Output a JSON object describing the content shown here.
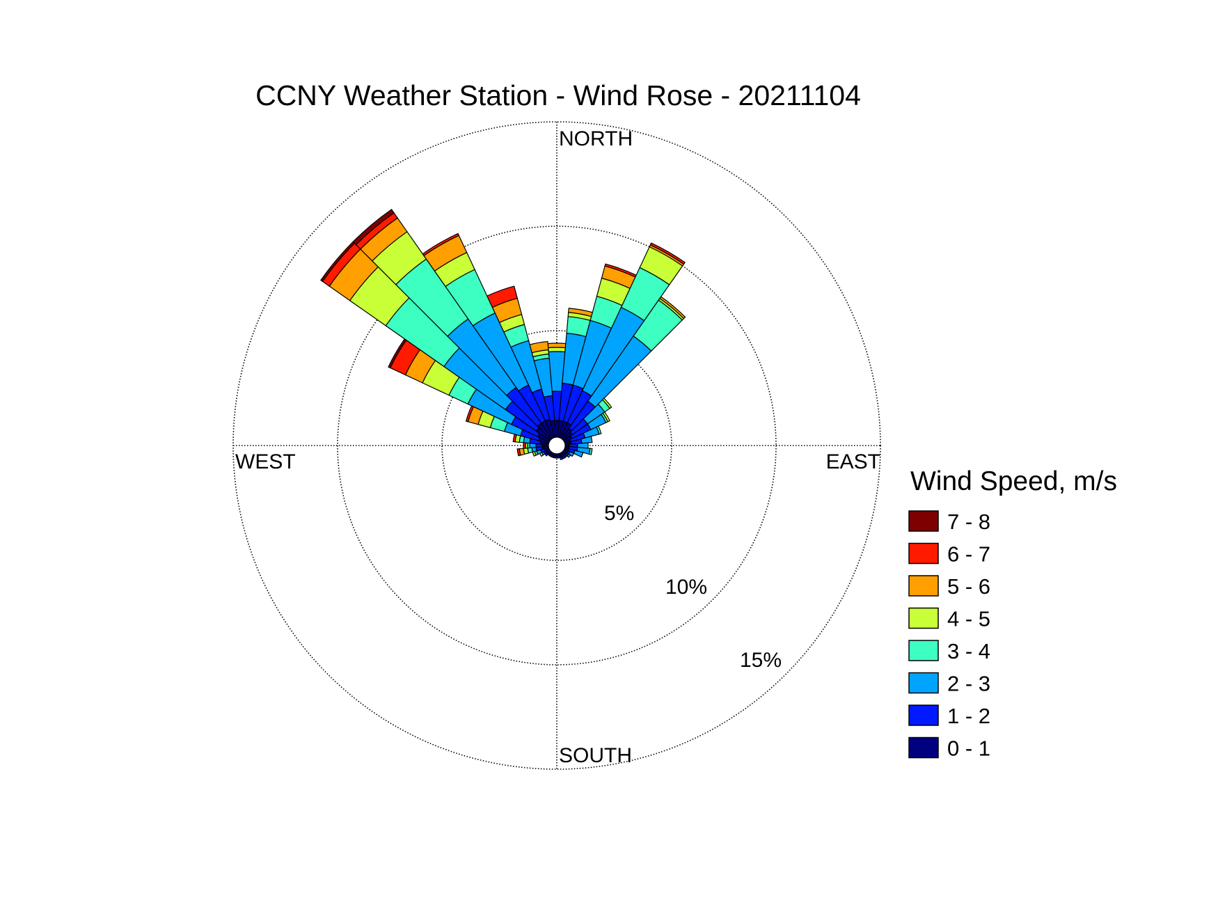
{
  "chart_data": {
    "type": "windrose",
    "title": "CCNY Weather Station - Wind Rose - 20211104",
    "directions": {
      "north": "NORTH",
      "south": "SOUTH",
      "east": "EAST",
      "west": "WEST"
    },
    "rings": [
      {
        "value": 5,
        "label": "5%"
      },
      {
        "value": 10,
        "label": "10%"
      },
      {
        "value": 15,
        "label": "15%"
      }
    ],
    "legend": {
      "title": "Wind Speed, m/s",
      "position": "right",
      "bins": [
        {
          "label": "7 - 8",
          "color": "#7f0000"
        },
        {
          "label": "6 - 7",
          "color": "#ff1a00"
        },
        {
          "label": "5 - 6",
          "color": "#ff9f00"
        },
        {
          "label": "4 - 5",
          "color": "#c8ff36"
        },
        {
          "label": "3 - 4",
          "color": "#3dffc2"
        },
        {
          "label": "2 - 3",
          "color": "#00a4ff"
        },
        {
          "label": "1 - 2",
          "color": "#0019ff"
        },
        {
          "label": "0 - 1",
          "color": "#000080"
        }
      ]
    },
    "speed_bins": [
      "0 - 1",
      "1 - 2",
      "2 - 3",
      "3 - 4",
      "4 - 5",
      "5 - 6",
      "6 - 7",
      "7 - 8"
    ],
    "sector_width_deg": 10,
    "sectors": [
      {
        "direction_deg": 0,
        "cumulative": [
          0.8,
          2.2,
          4.1,
          4.1,
          4.3,
          4.5,
          4.5,
          4.5
        ]
      },
      {
        "direction_deg": 10,
        "cumulative": [
          0.8,
          2.6,
          5.0,
          5.8,
          6.0,
          6.2,
          6.2,
          6.2
        ]
      },
      {
        "direction_deg": 20,
        "cumulative": [
          0.8,
          2.6,
          5.8,
          7.0,
          7.9,
          8.5,
          8.6,
          8.6
        ]
      },
      {
        "direction_deg": 30,
        "cumulative": [
          0.8,
          2.5,
          6.9,
          9.0,
          10.1,
          10.2,
          10.3,
          10.3
        ]
      },
      {
        "direction_deg": 40,
        "cumulative": [
          0.6,
          2.2,
          6.0,
          8.1,
          8.2,
          8.3,
          8.3,
          8.3
        ]
      },
      {
        "direction_deg": 50,
        "cumulative": [
          0.5,
          1.4,
          2.4,
          2.7,
          2.8,
          2.8,
          2.8,
          2.8
        ]
      },
      {
        "direction_deg": 60,
        "cumulative": [
          0.4,
          1.4,
          2.2,
          2.3,
          2.4,
          2.4,
          2.4,
          2.4
        ]
      },
      {
        "direction_deg": 70,
        "cumulative": [
          0.3,
          1.0,
          1.7,
          1.8,
          1.8,
          1.8,
          1.8,
          1.8
        ]
      },
      {
        "direction_deg": 80,
        "cumulative": [
          0.3,
          0.8,
          1.3,
          1.3,
          1.3,
          1.3,
          1.3,
          1.3
        ]
      },
      {
        "direction_deg": 90,
        "cumulative": [
          0.2,
          0.6,
          1.1,
          1.1,
          1.1,
          1.1,
          1.1,
          1.1
        ]
      },
      {
        "direction_deg": 100,
        "cumulative": [
          0.2,
          0.6,
          1.2,
          1.3,
          1.3,
          1.3,
          1.3,
          1.3
        ]
      },
      {
        "direction_deg": 110,
        "cumulative": [
          0.2,
          0.5,
          0.9,
          0.9,
          0.9,
          0.9,
          0.9,
          0.9
        ]
      },
      {
        "direction_deg": 120,
        "cumulative": [
          0.2,
          0.3,
          0.5,
          0.5,
          0.5,
          0.5,
          0.5,
          0.5
        ]
      },
      {
        "direction_deg": 130,
        "cumulative": [
          0.2,
          0.3,
          0.4,
          0.4,
          0.4,
          0.4,
          0.4,
          0.4
        ]
      },
      {
        "direction_deg": 140,
        "cumulative": [
          0.2,
          0.3,
          0.3,
          0.3,
          0.3,
          0.3,
          0.3,
          0.3
        ]
      },
      {
        "direction_deg": 150,
        "cumulative": [
          0.2,
          0.3,
          0.3,
          0.3,
          0.3,
          0.3,
          0.3,
          0.3
        ]
      },
      {
        "direction_deg": 160,
        "cumulative": [
          0.2,
          0.3,
          0.3,
          0.3,
          0.3,
          0.3,
          0.3,
          0.3
        ]
      },
      {
        "direction_deg": 170,
        "cumulative": [
          0.2,
          0.2,
          0.2,
          0.2,
          0.2,
          0.2,
          0.2,
          0.2
        ]
      },
      {
        "direction_deg": 180,
        "cumulative": [
          0.2,
          0.2,
          0.2,
          0.2,
          0.2,
          0.2,
          0.2,
          0.2
        ]
      },
      {
        "direction_deg": 190,
        "cumulative": [
          0.2,
          0.2,
          0.2,
          0.2,
          0.2,
          0.2,
          0.2,
          0.2
        ]
      },
      {
        "direction_deg": 200,
        "cumulative": [
          0.2,
          0.2,
          0.2,
          0.2,
          0.2,
          0.2,
          0.2,
          0.2
        ]
      },
      {
        "direction_deg": 210,
        "cumulative": [
          0.2,
          0.2,
          0.2,
          0.2,
          0.2,
          0.2,
          0.2,
          0.2
        ]
      },
      {
        "direction_deg": 220,
        "cumulative": [
          0.2,
          0.2,
          0.2,
          0.2,
          0.2,
          0.2,
          0.2,
          0.2
        ]
      },
      {
        "direction_deg": 230,
        "cumulative": [
          0.2,
          0.3,
          0.3,
          0.3,
          0.3,
          0.3,
          0.3,
          0.3
        ]
      },
      {
        "direction_deg": 240,
        "cumulative": [
          0.2,
          0.3,
          0.4,
          0.4,
          0.5,
          0.5,
          0.5,
          0.5
        ]
      },
      {
        "direction_deg": 250,
        "cumulative": [
          0.2,
          0.4,
          0.6,
          0.7,
          0.8,
          0.8,
          0.8,
          0.8
        ]
      },
      {
        "direction_deg": 260,
        "cumulative": [
          0.3,
          0.6,
          0.8,
          1.0,
          1.2,
          1.4,
          1.5,
          1.5
        ]
      },
      {
        "direction_deg": 270,
        "cumulative": [
          0.3,
          0.6,
          0.9,
          1.0,
          1.1,
          1.1,
          1.2,
          1.2
        ]
      },
      {
        "direction_deg": 280,
        "cumulative": [
          0.4,
          0.9,
          1.2,
          1.4,
          1.6,
          1.6,
          1.7,
          1.7
        ]
      },
      {
        "direction_deg": 290,
        "cumulative": [
          0.5,
          1.4,
          2.2,
          2.9,
          3.5,
          4.0,
          4.1,
          4.1
        ]
      },
      {
        "direction_deg": 300,
        "cumulative": [
          0.6,
          2.0,
          4.3,
          5.3,
          6.7,
          7.6,
          8.4,
          8.5
        ]
      },
      {
        "direction_deg": 310,
        "cumulative": [
          0.8,
          2.6,
          6.2,
          9.6,
          11.7,
          12.9,
          13.3,
          13.4
        ]
      },
      {
        "direction_deg": 320,
        "cumulative": [
          0.9,
          3.0,
          7.0,
          10.5,
          12.1,
          12.9,
          13.2,
          13.4
        ]
      },
      {
        "direction_deg": 330,
        "cumulative": [
          0.9,
          2.8,
          6.6,
          8.9,
          9.8,
          10.7,
          10.8,
          10.8
        ]
      },
      {
        "direction_deg": 340,
        "cumulative": [
          0.9,
          2.4,
          4.8,
          5.6,
          6.1,
          6.9,
          7.5,
          7.5
        ]
      },
      {
        "direction_deg": 350,
        "cumulative": [
          0.8,
          2.0,
          3.8,
          4.0,
          4.2,
          4.6,
          4.6,
          4.6
        ]
      }
    ]
  }
}
